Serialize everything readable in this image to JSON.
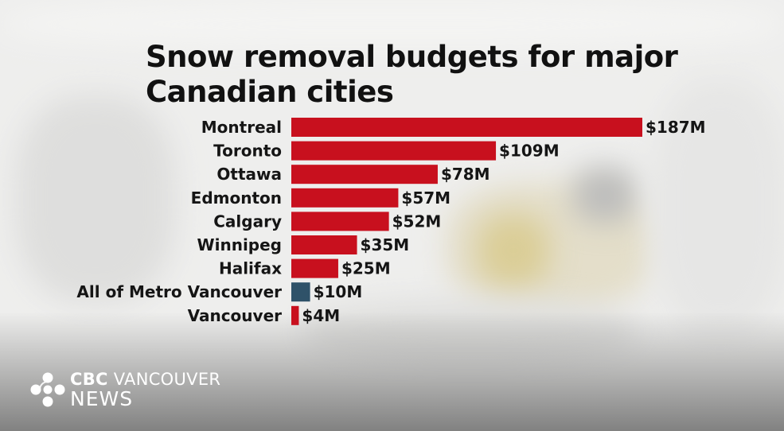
{
  "chart_data": {
    "type": "bar",
    "orientation": "horizontal",
    "title": "Snow removal budgets for major Canadian cities",
    "categories": [
      "Montreal",
      "Toronto",
      "Ottawa",
      "Edmonton",
      "Calgary",
      "Winnipeg",
      "Halifax",
      "All of Metro Vancouver",
      "Vancouver"
    ],
    "values": [
      187,
      109,
      78,
      57,
      52,
      35,
      25,
      10,
      4
    ],
    "value_labels": [
      "$187M",
      "$109M",
      "$78M",
      "$57M",
      "$52M",
      "$35M",
      "$25M",
      "$10M",
      "$4M"
    ],
    "unit": "$M",
    "bar_colors": [
      "#c8101e",
      "#c8101e",
      "#c8101e",
      "#c8101e",
      "#c8101e",
      "#c8101e",
      "#c8101e",
      "#2f5269",
      "#c8101e"
    ],
    "xlim": [
      0,
      187
    ],
    "grid": false,
    "legend": "none"
  },
  "branding": {
    "line1_bold": "CBC",
    "line1_rest": " VANCOUVER",
    "line2": "NEWS"
  },
  "colors": {
    "highlight": "#c8101e",
    "regional": "#2f5269"
  }
}
